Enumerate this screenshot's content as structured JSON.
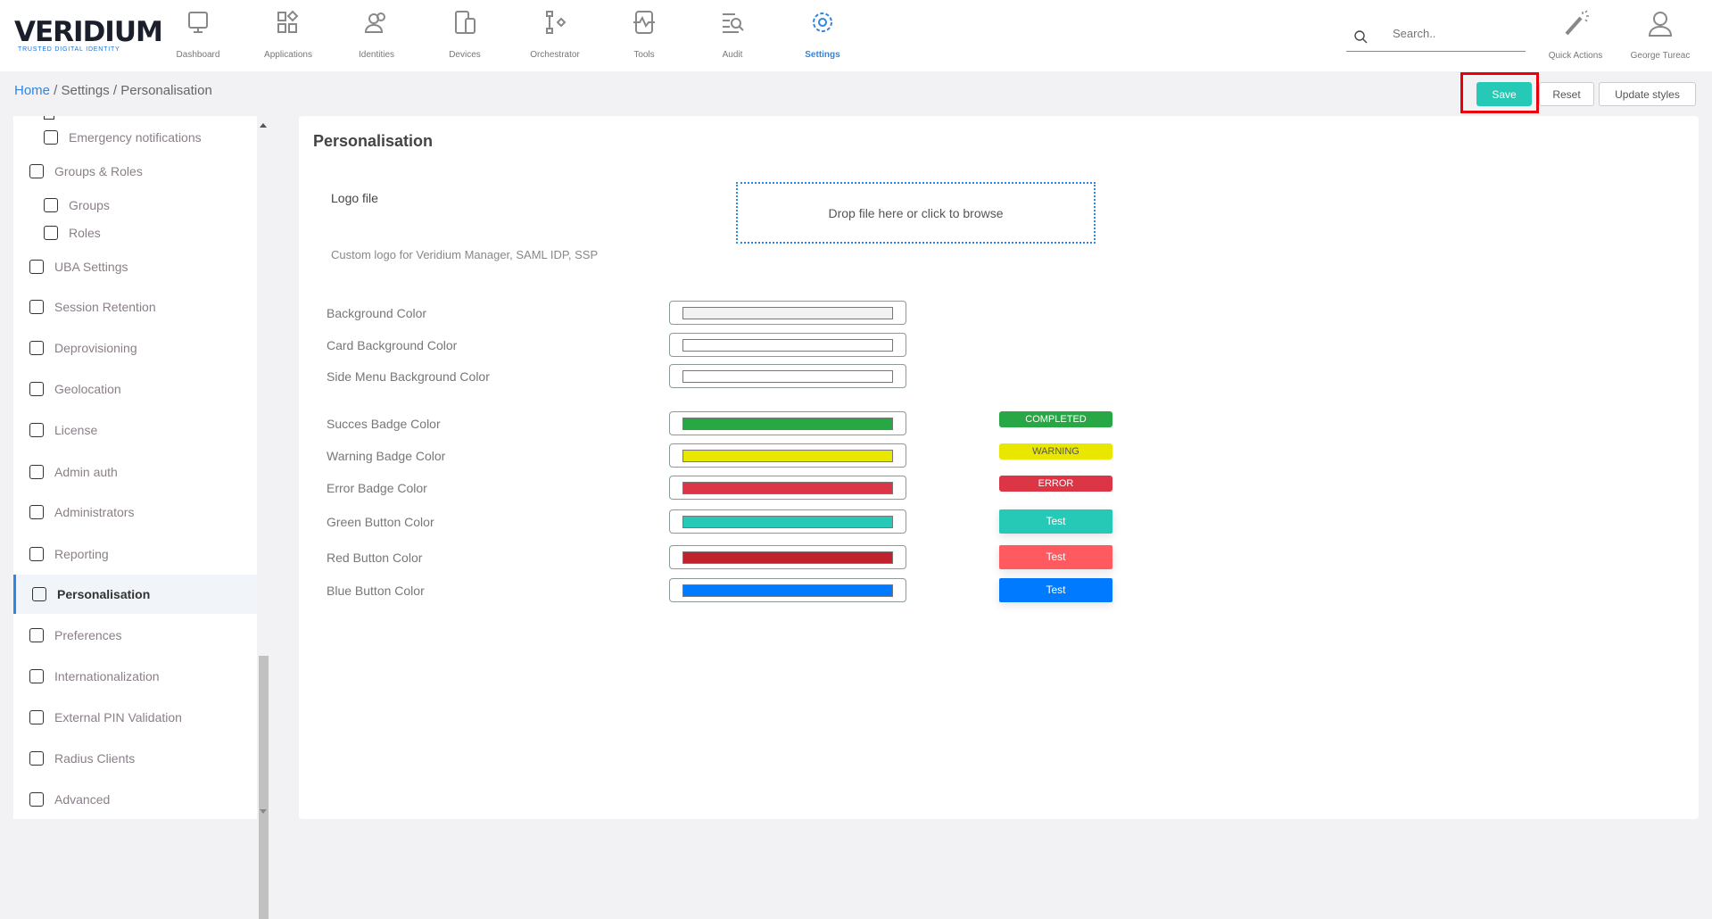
{
  "brand": {
    "name": "VERIDIUM",
    "tagline": "TRUSTED DIGITAL IDENTITY"
  },
  "nav": [
    {
      "label": "Dashboard",
      "icon": "monitor-icon"
    },
    {
      "label": "Applications",
      "icon": "apps-icon"
    },
    {
      "label": "Identities",
      "icon": "users-icon"
    },
    {
      "label": "Devices",
      "icon": "devices-icon"
    },
    {
      "label": "Orchestrator",
      "icon": "flow-icon"
    },
    {
      "label": "Tools",
      "icon": "pulse-icon"
    },
    {
      "label": "Audit",
      "icon": "audit-search-icon"
    },
    {
      "label": "Settings",
      "icon": "gear-icon",
      "active": true
    }
  ],
  "search": {
    "placeholder": "Search.."
  },
  "quick_actions": "Quick Actions",
  "user": "George Tureac",
  "breadcrumb": {
    "home": "Home",
    "settings": "Settings",
    "current": "Personalisation"
  },
  "toolbar": {
    "save": "Save",
    "reset": "Reset",
    "update": "Update styles"
  },
  "sidebar": {
    "items": [
      {
        "label": "Emergency notifications",
        "sub": true
      },
      {
        "label": "Groups & Roles"
      },
      {
        "label": "Groups",
        "sub": true
      },
      {
        "label": "Roles",
        "sub": true
      },
      {
        "label": "UBA Settings"
      },
      {
        "label": "Session Retention"
      },
      {
        "label": "Deprovisioning"
      },
      {
        "label": "Geolocation"
      },
      {
        "label": "License"
      },
      {
        "label": "Admin auth"
      },
      {
        "label": "Administrators"
      },
      {
        "label": "Reporting"
      },
      {
        "label": "Personalisation",
        "active": true
      },
      {
        "label": "Preferences"
      },
      {
        "label": "Internationalization"
      },
      {
        "label": "External PIN Validation"
      },
      {
        "label": "Radius Clients"
      },
      {
        "label": "Advanced"
      }
    ]
  },
  "main": {
    "title": "Personalisation",
    "logo_label": "Logo file",
    "drop_text": "Drop file here or click to browse",
    "logo_hint": "Custom logo for Veridium Manager, SAML IDP, SSP",
    "colors": [
      {
        "label": "Background Color",
        "value": "#f2f2f4"
      },
      {
        "label": "Card Background Color",
        "value": "#ffffff"
      },
      {
        "label": "Side Menu Background Color",
        "value": "#ffffff"
      },
      {
        "label": "Succes Badge Color",
        "value": "#28a745",
        "preview": "COMPLETED",
        "kind": "badge",
        "text": "#ffffff"
      },
      {
        "label": "Warning Badge Color",
        "value": "#e9e700",
        "preview": "WARNING",
        "kind": "badge",
        "text": "#555555"
      },
      {
        "label": "Error Badge Color",
        "value": "#dc3545",
        "preview": "ERROR",
        "kind": "badge",
        "text": "#ffffff"
      },
      {
        "label": "Green Button Color",
        "value": "#26c9b5",
        "preview": "Test",
        "kind": "button",
        "preview_bg": "#26c9b5"
      },
      {
        "label": "Red Button Color",
        "value": "#c0222d",
        "preview": "Test",
        "kind": "button",
        "preview_bg": "#ff5a5f"
      },
      {
        "label": "Blue Button Color",
        "value": "#007bff",
        "preview": "Test",
        "kind": "button",
        "preview_bg": "#007bff"
      }
    ]
  }
}
